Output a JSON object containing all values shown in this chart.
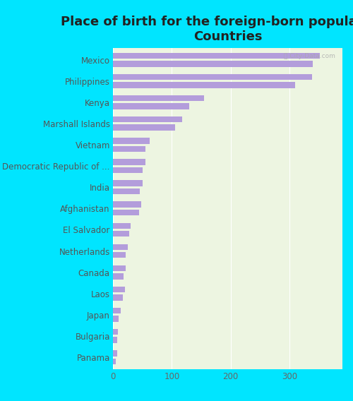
{
  "title": "Place of birth for the foreign-born population -\nCountries",
  "categories": [
    "Mexico",
    "Philippines",
    "Kenya",
    "Marshall Islands",
    "Vietnam",
    "Democratic Republic of ...",
    "India",
    "Afghanistan",
    "El Salvador",
    "Netherlands",
    "Canada",
    "Laos",
    "Japan",
    "Bulgaria",
    "Panama"
  ],
  "values1": [
    352,
    338,
    155,
    118,
    62,
    55,
    50,
    48,
    30,
    25,
    21,
    20,
    13,
    8,
    7
  ],
  "values2": [
    340,
    310,
    130,
    105,
    55,
    50,
    46,
    44,
    27,
    22,
    18,
    17,
    10,
    7,
    5
  ],
  "bar_color": "#b39ddb",
  "background_plot": "#edf5e1",
  "background_outer": "#00e5ff",
  "title_fontsize": 13,
  "tick_fontsize": 8.5,
  "xlim": [
    0,
    390
  ],
  "xticks": [
    0,
    100,
    200,
    300
  ]
}
